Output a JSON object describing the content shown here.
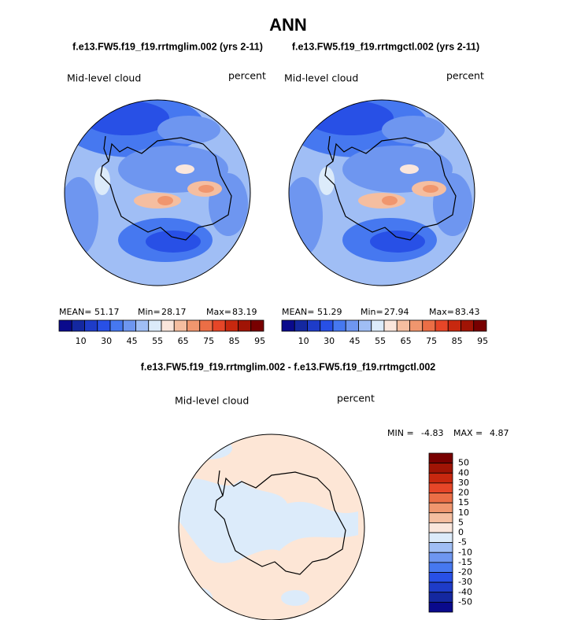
{
  "title": "ANN",
  "panels": [
    {
      "case": "f.e13.FW5.f19_f19.rrtmglim.002 (yrs 2-11)",
      "variable": "Mid-level cloud",
      "units": "percent",
      "stats": [
        {
          "label": "MEAN=",
          "value": 51.17
        },
        {
          "label": "Min=",
          "value": 28.17
        },
        {
          "label": "Max=",
          "value": 83.19
        }
      ]
    },
    {
      "case": "f.e13.FW5.f19_f19.rrtmgctl.002 (yrs 2-11)",
      "variable": "Mid-level cloud",
      "units": "percent",
      "stats": [
        {
          "label": "MEAN=",
          "value": 51.29
        },
        {
          "label": "Min=",
          "value": 27.94
        },
        {
          "label": "Max=",
          "value": 83.43
        }
      ]
    }
  ],
  "colorbar": {
    "labels": [
      10,
      30,
      45,
      55,
      65,
      75,
      85,
      95
    ],
    "colors": [
      "#0a0a8c",
      "#1428a0",
      "#1e3cc8",
      "#2850e6",
      "#4678f0",
      "#6e96f0",
      "#a0bef5",
      "#dcebfa",
      "#fae6dc",
      "#f5bea0",
      "#f0966e",
      "#eb6e46",
      "#e64628",
      "#c8280f",
      "#a01405",
      "#780000"
    ]
  },
  "difference": {
    "title": "f.e13.FW5.f19_f19.rrtmglim.002 - f.e13.FW5.f19_f19.rrtmgctl.002",
    "variable": "Mid-level cloud",
    "units": "percent",
    "stats": [
      {
        "label": "MIN =",
        "value": -4.83
      },
      {
        "label": "MAX =",
        "value": 4.87
      }
    ],
    "colorbar": {
      "labels": [
        50,
        40,
        30,
        20,
        15,
        10,
        5,
        0,
        -5,
        -10,
        -15,
        -20,
        -30,
        -40,
        -50
      ],
      "colors": [
        "#780000",
        "#a01405",
        "#c8280f",
        "#e64628",
        "#eb6e46",
        "#f0966e",
        "#f5bea0",
        "#fae6dc",
        "#dcebfa",
        "#a0bef5",
        "#6e96f0",
        "#4678f0",
        "#2850e6",
        "#1e3cc8",
        "#1428a0",
        "#0a0a8c"
      ]
    }
  }
}
